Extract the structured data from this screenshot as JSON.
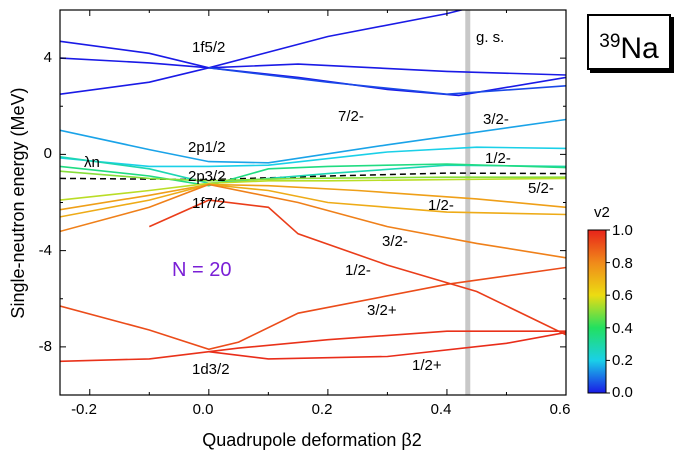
{
  "nucleus": {
    "mass_number": "39",
    "symbol": "Na"
  },
  "chart_data": {
    "type": "line",
    "xlabel": "Quadrupole deformation β2",
    "ylabel": "Single-neutron energy (MeV)",
    "xlim": [
      -0.25,
      0.6
    ],
    "ylim": [
      -10,
      6
    ],
    "xticks": [
      -0.2,
      0.0,
      0.2,
      0.4,
      0.6
    ],
    "xtick_labels": [
      "-0.2",
      "0.0",
      "0.2",
      "0.4",
      "0.6"
    ],
    "yticks": [
      -8,
      -4,
      0,
      4
    ],
    "ytick_labels": [
      "-8",
      "-4",
      "0",
      "4"
    ],
    "colorbar": {
      "title": "v2",
      "range": [
        0.0,
        1.0
      ],
      "ticks": [
        "0.0",
        "0.2",
        "0.4",
        "0.6",
        "0.8",
        "1.0"
      ],
      "colors": [
        "#1a1ae6",
        "#1ad0e8",
        "#22e060",
        "#ecdc12",
        "#f08a1a",
        "#e8231a"
      ]
    },
    "ground_state": {
      "x": 0.435,
      "label": "g. s."
    },
    "fermi_level": {
      "label": "λn",
      "points": [
        [
          -0.25,
          -1.0
        ],
        [
          0.0,
          -1.05
        ],
        [
          0.2,
          -0.9
        ],
        [
          0.4,
          -0.78
        ],
        [
          0.6,
          -0.8
        ]
      ]
    },
    "annotations": {
      "n_label": "N = 20",
      "orbital_1f52": "1f5/2",
      "orbital_2p12": "2p1/2",
      "orbital_2p32": "2p3/2",
      "orbital_1f72": "1f7/2",
      "orbital_1d32": "1d3/2",
      "k_72m": "7/2-",
      "k_32m_top": "3/2-",
      "k_12m_top": "1/2-",
      "k_52m": "5/2-",
      "k_12m_mid": "1/2-",
      "k_32m_mid": "3/2-",
      "k_12m_low": "1/2-",
      "k_32p": "3/2+",
      "k_12p": "1/2+"
    },
    "series": [
      {
        "v2": 0.0,
        "points": [
          [
            -0.25,
            4.7
          ],
          [
            -0.1,
            4.2
          ],
          [
            0.0,
            3.6
          ],
          [
            0.2,
            4.9
          ],
          [
            0.4,
            5.85
          ],
          [
            0.44,
            6.1
          ]
        ]
      },
      {
        "v2": 0.0,
        "points": [
          [
            -0.25,
            4.0
          ],
          [
            -0.1,
            3.8
          ],
          [
            0.0,
            3.6
          ],
          [
            0.15,
            3.75
          ],
          [
            0.4,
            3.45
          ],
          [
            0.6,
            3.3
          ]
        ]
      },
      {
        "v2": 0.0,
        "points": [
          [
            -0.25,
            2.5
          ],
          [
            -0.1,
            3.0
          ],
          [
            0.0,
            3.6
          ],
          [
            0.15,
            3.2
          ],
          [
            0.3,
            2.7
          ],
          [
            0.42,
            2.45
          ],
          [
            0.6,
            3.2
          ]
        ]
      },
      {
        "v2": 0.05,
        "points": [
          [
            0.0,
            3.6
          ],
          [
            0.2,
            3.0
          ],
          [
            0.4,
            2.5
          ],
          [
            0.6,
            2.85
          ]
        ]
      },
      {
        "v2": 0.15,
        "points": [
          [
            -0.25,
            1.0
          ],
          [
            -0.1,
            0.2
          ],
          [
            0.0,
            -0.3
          ],
          [
            0.1,
            -0.35
          ],
          [
            0.3,
            0.4
          ],
          [
            0.6,
            1.45
          ]
        ]
      },
      {
        "v2": 0.2,
        "points": [
          [
            -0.25,
            -0.15
          ],
          [
            -0.1,
            -0.5
          ],
          [
            0.0,
            -0.5
          ],
          [
            0.1,
            -0.45
          ],
          [
            0.3,
            0.1
          ],
          [
            0.45,
            0.3
          ],
          [
            0.6,
            0.25
          ]
        ]
      },
      {
        "v2": 0.28,
        "points": [
          [
            -0.25,
            -0.1
          ],
          [
            -0.1,
            -0.6
          ],
          [
            0.0,
            -1.2
          ],
          [
            0.2,
            -0.8
          ],
          [
            0.4,
            -0.45
          ],
          [
            0.6,
            -0.5
          ]
        ]
      },
      {
        "v2": 0.35,
        "points": [
          [
            -0.25,
            -0.5
          ],
          [
            -0.1,
            -0.9
          ],
          [
            0.0,
            -1.3
          ],
          [
            0.1,
            -0.6
          ],
          [
            0.2,
            -0.5
          ],
          [
            0.4,
            -0.4
          ],
          [
            0.6,
            -0.55
          ]
        ]
      },
      {
        "v2": 0.5,
        "points": [
          [
            -0.25,
            -0.7
          ],
          [
            -0.1,
            -1.0
          ],
          [
            0.0,
            -1.1
          ],
          [
            0.15,
            -1.0
          ],
          [
            0.4,
            -0.95
          ],
          [
            0.6,
            -0.95
          ]
        ]
      },
      {
        "v2": 0.55,
        "points": [
          [
            -0.25,
            -1.9
          ],
          [
            -0.1,
            -1.5
          ],
          [
            0.0,
            -1.2
          ],
          [
            0.1,
            -1.1
          ],
          [
            0.2,
            -1.1
          ],
          [
            0.4,
            -1.05
          ],
          [
            0.6,
            -1.0
          ]
        ]
      },
      {
        "v2": 0.75,
        "points": [
          [
            -0.25,
            -2.3
          ],
          [
            -0.1,
            -1.7
          ],
          [
            0.0,
            -1.25
          ],
          [
            0.1,
            -1.3
          ],
          [
            0.25,
            -1.5
          ],
          [
            0.45,
            -1.85
          ],
          [
            0.6,
            -2.2
          ]
        ]
      },
      {
        "v2": 0.72,
        "points": [
          [
            -0.25,
            -2.6
          ],
          [
            -0.1,
            -1.9
          ],
          [
            0.0,
            -1.25
          ],
          [
            0.1,
            -1.5
          ],
          [
            0.2,
            -2.0
          ],
          [
            0.4,
            -2.4
          ],
          [
            0.6,
            -2.5
          ]
        ]
      },
      {
        "v2": 0.82,
        "points": [
          [
            -0.25,
            -3.2
          ],
          [
            -0.1,
            -2.2
          ],
          [
            0.0,
            -1.25
          ],
          [
            0.15,
            -2.0
          ],
          [
            0.3,
            -3.0
          ],
          [
            0.45,
            -3.7
          ],
          [
            0.6,
            -4.3
          ]
        ]
      },
      {
        "v2": 0.92,
        "points": [
          [
            -0.25,
            -6.3
          ],
          [
            -0.1,
            -7.3
          ],
          [
            0.0,
            -8.1
          ],
          [
            0.05,
            -7.8
          ],
          [
            0.15,
            -6.6
          ],
          [
            0.4,
            -5.4
          ],
          [
            0.6,
            -4.7
          ]
        ]
      },
      {
        "v2": 0.95,
        "points": [
          [
            -0.1,
            -3.0
          ],
          [
            0.0,
            -1.9
          ],
          [
            0.1,
            -2.2
          ],
          [
            0.15,
            -3.3
          ],
          [
            0.3,
            -4.6
          ],
          [
            0.45,
            -5.7
          ],
          [
            0.6,
            -7.5
          ]
        ]
      },
      {
        "v2": 0.97,
        "points": [
          [
            -0.25,
            -8.6
          ],
          [
            -0.1,
            -8.5
          ],
          [
            0.0,
            -8.2
          ],
          [
            0.05,
            -8.05
          ],
          [
            0.2,
            -7.7
          ],
          [
            0.4,
            -7.35
          ],
          [
            0.6,
            -7.35
          ]
        ]
      },
      {
        "v2": 0.98,
        "points": [
          [
            0.0,
            -8.2
          ],
          [
            0.1,
            -8.5
          ],
          [
            0.3,
            -8.4
          ],
          [
            0.5,
            -7.85
          ],
          [
            0.6,
            -7.4
          ]
        ]
      }
    ]
  }
}
